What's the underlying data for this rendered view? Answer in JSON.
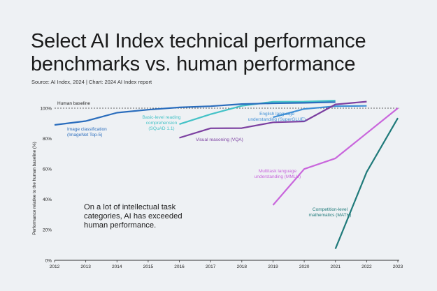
{
  "header": {
    "title_line1": "Select AI Index technical performance",
    "title_line2": "benchmarks vs. human performance",
    "source": "Source: AI Index, 2024 | Chart: 2024 AI Index report"
  },
  "chart_data": {
    "type": "line",
    "title": "Select AI Index technical performance benchmarks vs. human performance",
    "ylabel": "Performance relative to the human baseline (%)",
    "xlabel": "",
    "x": [
      "2012",
      "2013",
      "2014",
      "2015",
      "2016",
      "2017",
      "2018",
      "2019",
      "2020",
      "2021",
      "2022",
      "2023"
    ],
    "y_ticks": [
      "0%",
      "20%",
      "40%",
      "60%",
      "80%",
      "100%"
    ],
    "ylim": [
      0,
      110
    ],
    "grid": false,
    "baseline": {
      "value": 100,
      "label": "Human baseline"
    },
    "annotation": "On a lot of intellectual task categories, AI has exceeded human performance.",
    "series": [
      {
        "name": "Image classification (ImageNet Top-5)",
        "color": "#2a6dbd",
        "points": [
          [
            2012,
            89
          ],
          [
            2013,
            91.5
          ],
          [
            2014,
            97
          ],
          [
            2015,
            99
          ],
          [
            2016,
            100.5
          ],
          [
            2017,
            101.3
          ],
          [
            2018,
            102.7
          ],
          [
            2019,
            103.2
          ],
          [
            2020,
            103.5
          ],
          [
            2021,
            104
          ]
        ]
      },
      {
        "name": "Basic-level reading comprehension (SQuAD 1.1)",
        "color": "#44c2c7",
        "points": [
          [
            2016,
            89.5
          ],
          [
            2017,
            96
          ],
          [
            2018,
            101.5
          ],
          [
            2019,
            104.2
          ],
          [
            2020,
            104.3
          ],
          [
            2021,
            105
          ]
        ]
      },
      {
        "name": "English language understanding (SuperGLUE)",
        "color": "#3f8fd6",
        "points": [
          [
            2019,
            94
          ],
          [
            2020,
            99.5
          ],
          [
            2021,
            101.3
          ],
          [
            2022,
            101.5
          ]
        ]
      },
      {
        "name": "Visual reasoning (VQA)",
        "color": "#7b3fa0",
        "points": [
          [
            2016,
            80.5
          ],
          [
            2017,
            86.8
          ],
          [
            2018,
            86.9
          ],
          [
            2019,
            90.7
          ],
          [
            2020,
            91.3
          ],
          [
            2021,
            102.5
          ],
          [
            2022,
            104.3
          ]
        ]
      },
      {
        "name": "Multitask language understanding (MMLU)",
        "color": "#c966dc",
        "points": [
          [
            2019,
            36.3
          ],
          [
            2020,
            60
          ],
          [
            2021,
            67
          ],
          [
            2023,
            100
          ]
        ]
      },
      {
        "name": "Competition-level mathematics (MATH)",
        "color": "#1f7a7a",
        "points": [
          [
            2021,
            7.5
          ],
          [
            2022,
            58
          ],
          [
            2023,
            93.5
          ]
        ]
      }
    ],
    "labels": {
      "imagenet": [
        "Image classification",
        "(ImageNet Top-5)"
      ],
      "squad": [
        "Basic-level reading",
        "comprehension",
        "(SQuAD 1.1)"
      ],
      "superglue": [
        "English language",
        "understanding (SuperGLUE)"
      ],
      "vqa": [
        "Visual reasoning (VQA)"
      ],
      "mmlu": [
        "Multitask language",
        "understanding (MMLU)"
      ],
      "math": [
        "Competition-level",
        "mathematics (MATH)"
      ],
      "annotation": [
        "On a lot of intellectual task",
        "categories, AI has exceeded",
        "human performance."
      ]
    }
  }
}
